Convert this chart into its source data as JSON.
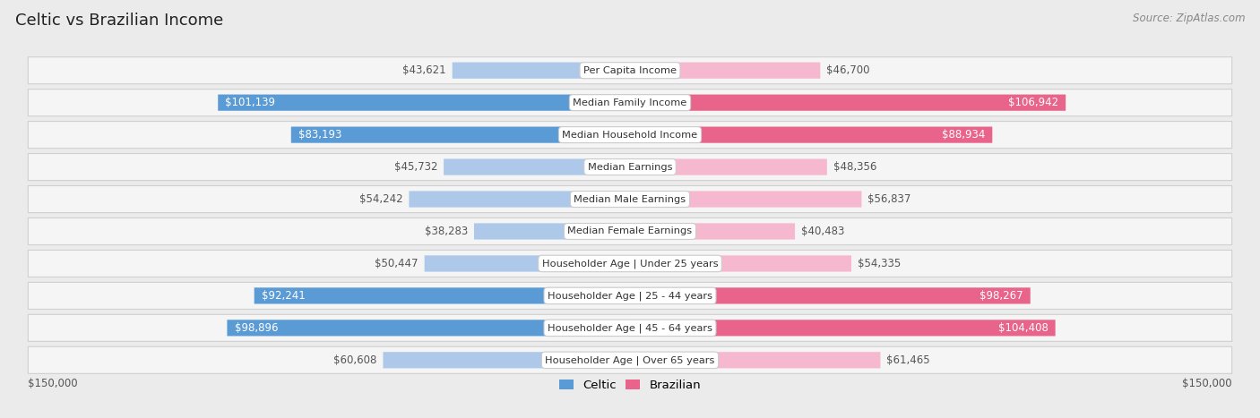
{
  "title": "Celtic vs Brazilian Income",
  "source": "Source: ZipAtlas.com",
  "categories": [
    "Per Capita Income",
    "Median Family Income",
    "Median Household Income",
    "Median Earnings",
    "Median Male Earnings",
    "Median Female Earnings",
    "Householder Age | Under 25 years",
    "Householder Age | 25 - 44 years",
    "Householder Age | 45 - 64 years",
    "Householder Age | Over 65 years"
  ],
  "celtic_values": [
    43621,
    101139,
    83193,
    45732,
    54242,
    38283,
    50447,
    92241,
    98896,
    60608
  ],
  "brazilian_values": [
    46700,
    106942,
    88934,
    48356,
    56837,
    40483,
    54335,
    98267,
    104408,
    61465
  ],
  "max_value": 150000,
  "celtic_color_light": "#adc8e8",
  "celtic_color_dark": "#5b9bd5",
  "brazilian_color_light": "#f5b8cf",
  "brazilian_color_dark": "#e8648a",
  "background_color": "#ebebeb",
  "row_bg_color": "#f5f5f5",
  "title_fontsize": 13,
  "value_fontsize": 8.5,
  "category_fontsize": 8.2,
  "legend_fontsize": 9.5,
  "source_fontsize": 8.5,
  "threshold_for_dark": 65000
}
